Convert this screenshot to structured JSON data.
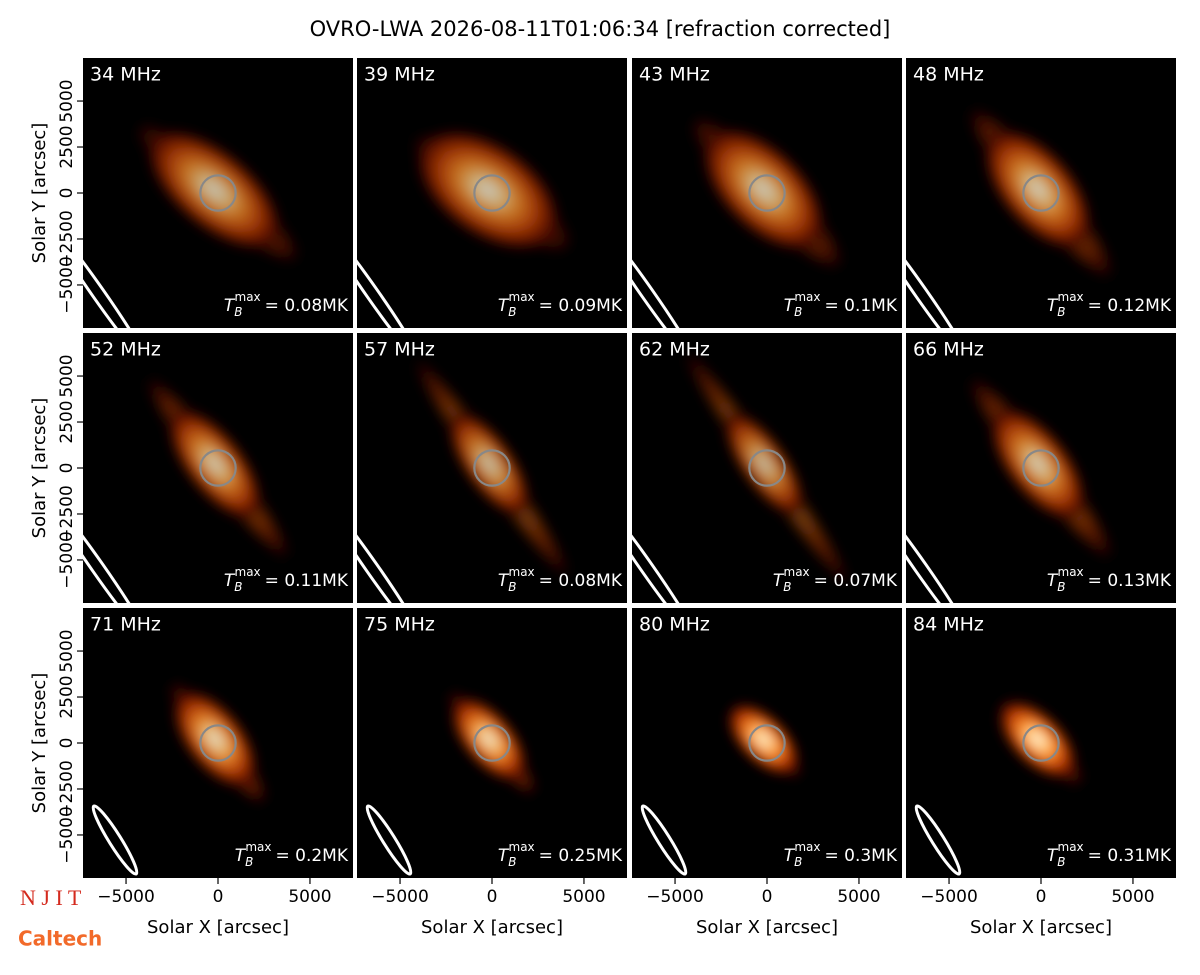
{
  "chart_data": {
    "type": "image",
    "title": "OVRO-LWA 2026-08-11T01:06:34 [refraction corrected]",
    "xlabel": "Solar X [arcsec]",
    "ylabel": "Solar Y [arcsec]",
    "xlim": [
      -7340,
      7340
    ],
    "ylim": [
      -7340,
      7340
    ],
    "xticks": [
      {
        "value": -5000,
        "label": "−5000"
      },
      0,
      5000
    ],
    "yticks": [
      {
        "value": -5000,
        "label": "−5000"
      },
      {
        "value": -2500,
        "label": "−2500"
      },
      0,
      2500,
      5000
    ],
    "sun_radius": 960,
    "tmax_symbol": "T",
    "tmax_sub": "B",
    "tmax_sup": "max",
    "panels": [
      {
        "name": "34 MHz",
        "tmax": 0.08,
        "value_label": "= 0.08MK"
      },
      {
        "name": "39 MHz",
        "tmax": 0.09,
        "value_label": "= 0.09MK"
      },
      {
        "name": "43 MHz",
        "tmax": 0.1,
        "value_label": "= 0.1MK"
      },
      {
        "name": "48 MHz",
        "tmax": 0.12,
        "value_label": "= 0.12MK"
      },
      {
        "name": "52 MHz",
        "tmax": 0.11,
        "value_label": "= 0.11MK"
      },
      {
        "name": "57 MHz",
        "tmax": 0.08,
        "value_label": "= 0.08MK"
      },
      {
        "name": "62 MHz",
        "tmax": 0.07,
        "value_label": "= 0.07MK"
      },
      {
        "name": "66 MHz",
        "tmax": 0.13,
        "value_label": "= 0.13MK"
      },
      {
        "name": "71 MHz",
        "tmax": 0.2,
        "value_label": "= 0.2MK"
      },
      {
        "name": "75 MHz",
        "tmax": 0.25,
        "value_label": "= 0.25MK"
      },
      {
        "name": "80 MHz",
        "tmax": 0.3,
        "value_label": "= 0.3MK"
      },
      {
        "name": "84 MHz",
        "tmax": 0.31,
        "value_label": "= 0.31MK"
      }
    ],
    "logos": [
      "N J I T",
      "Caltech"
    ]
  }
}
